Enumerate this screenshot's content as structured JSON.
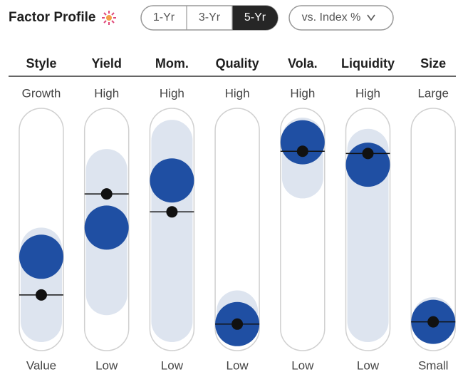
{
  "header": {
    "title": "Factor Profile",
    "periods": [
      "1-Yr",
      "3-Yr",
      "5-Yr"
    ],
    "selected_period": "5-Yr",
    "comparison": "vs. Index %"
  },
  "factors": [
    {
      "name": "Style",
      "high": "Growth",
      "low": "Value",
      "range": [
        0,
        51
      ],
      "fund": 38,
      "index": 21
    },
    {
      "name": "Yield",
      "high": "High",
      "low": "Low",
      "range": [
        12,
        86
      ],
      "fund": 51,
      "index": 66
    },
    {
      "name": "Mom.",
      "high": "High",
      "low": "Low",
      "range": [
        0,
        99
      ],
      "fund": 72,
      "index": 58
    },
    {
      "name": "Quality",
      "high": "High",
      "low": "Low",
      "range": [
        0,
        23
      ],
      "fund": 8,
      "index": 8
    },
    {
      "name": "Vola.",
      "high": "High",
      "low": "Low",
      "range": [
        64,
        100
      ],
      "fund": 89,
      "index": 85
    },
    {
      "name": "Liquidity",
      "high": "High",
      "low": "Low",
      "range": [
        0,
        95
      ],
      "fund": 79,
      "index": 84
    },
    {
      "name": "Size",
      "high": "Large",
      "low": "Small",
      "range": [
        0,
        20
      ],
      "fund": 9,
      "index": 9
    }
  ]
}
